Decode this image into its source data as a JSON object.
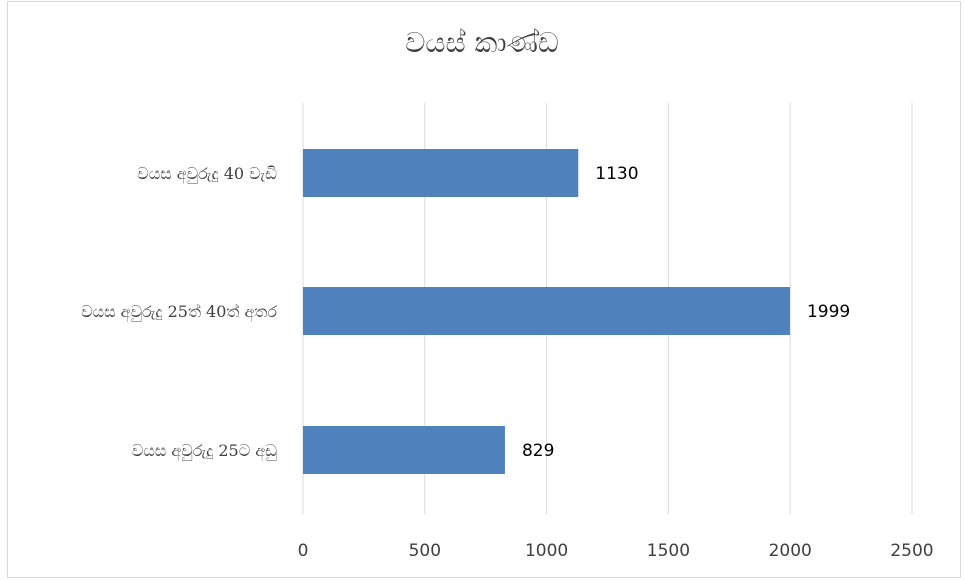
{
  "chart_data": {
    "type": "bar",
    "orientation": "horizontal",
    "title": "වයස් කාණ්ඩ",
    "categories": [
      "වයස අවුරුදු 40 වැඩි",
      "වයස අවුරුදු 25ත් 40ත් අතර",
      "වයස අවුරුදු 25ට අඩු"
    ],
    "values": [
      1130,
      1999,
      829
    ],
    "xlim": [
      0,
      2500
    ],
    "xticks": [
      "0",
      "500",
      "1000",
      "1500",
      "2000",
      "2500"
    ],
    "grid": true,
    "legend": "none",
    "bar_color": "#4f81bd"
  }
}
